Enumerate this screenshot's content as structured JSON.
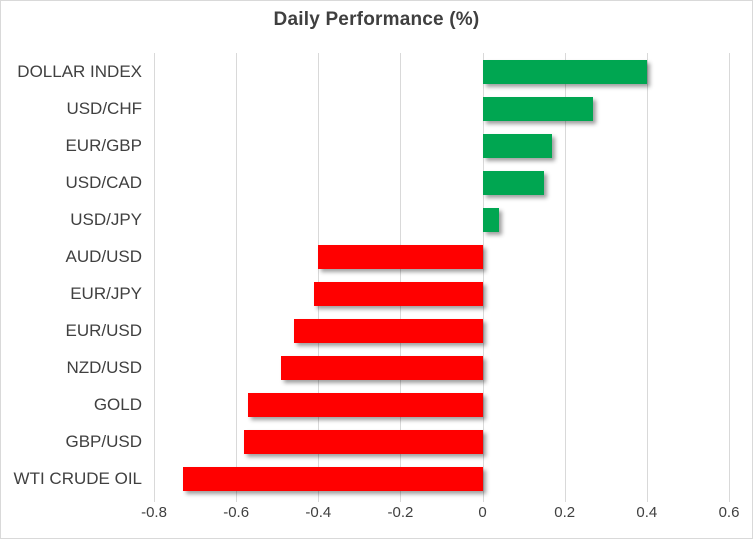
{
  "chart_data": {
    "type": "bar",
    "orientation": "horizontal",
    "title": "Daily Performance (%)",
    "categories": [
      "DOLLAR INDEX",
      "USD/CHF",
      "EUR/GBP",
      "USD/CAD",
      "USD/JPY",
      "AUD/USD",
      "EUR/JPY",
      "EUR/USD",
      "NZD/USD",
      "GOLD",
      "GBP/USD",
      "WTI CRUDE OIL"
    ],
    "values": [
      0.4,
      0.27,
      0.17,
      0.15,
      0.04,
      -0.4,
      -0.41,
      -0.46,
      -0.49,
      -0.57,
      -0.58,
      -0.73
    ],
    "xlim": [
      -0.8,
      0.6
    ],
    "xticks": [
      -0.8,
      -0.6,
      -0.4,
      -0.2,
      0,
      0.2,
      0.4,
      0.6
    ],
    "xtick_labels": [
      "-0.8",
      "-0.6",
      "-0.4",
      "-0.2",
      "0",
      "0.2",
      "0.4",
      "0.6"
    ],
    "grid": "vertical",
    "legend": "none",
    "colors": {
      "positive": "#00A651",
      "negative": "#FF0000",
      "gridline": "#D9D9D9",
      "text": "#404040",
      "title_text": "#3F3F3F"
    }
  }
}
